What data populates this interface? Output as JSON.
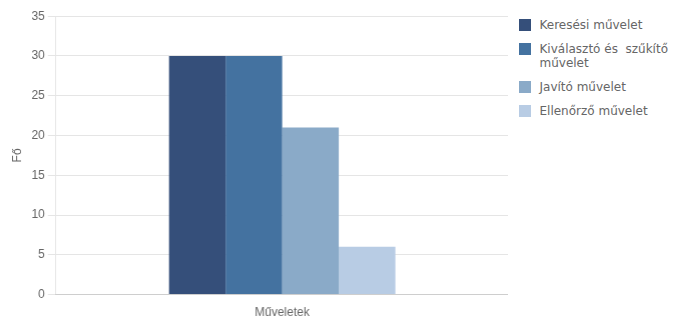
{
  "chart_data": {
    "type": "bar",
    "categories": [
      "Műveletek"
    ],
    "series": [
      {
        "name": "Keresési művelet",
        "color": "#354F7A",
        "values": [
          30
        ]
      },
      {
        "name": "Kiválasztó és  szűkítő\nművelet",
        "color": "#4472A0",
        "values": [
          30
        ]
      },
      {
        "name": "Javító művelet",
        "color": "#8AAAC8",
        "values": [
          21
        ]
      },
      {
        "name": "Ellenőrző művelet",
        "color": "#B8CCE4",
        "values": [
          6
        ]
      }
    ],
    "ylabel": "Fő",
    "ylim": [
      0,
      35
    ],
    "yticks": [
      0,
      5,
      10,
      15,
      20,
      25,
      30,
      35
    ],
    "grid": true,
    "legend": "right"
  }
}
